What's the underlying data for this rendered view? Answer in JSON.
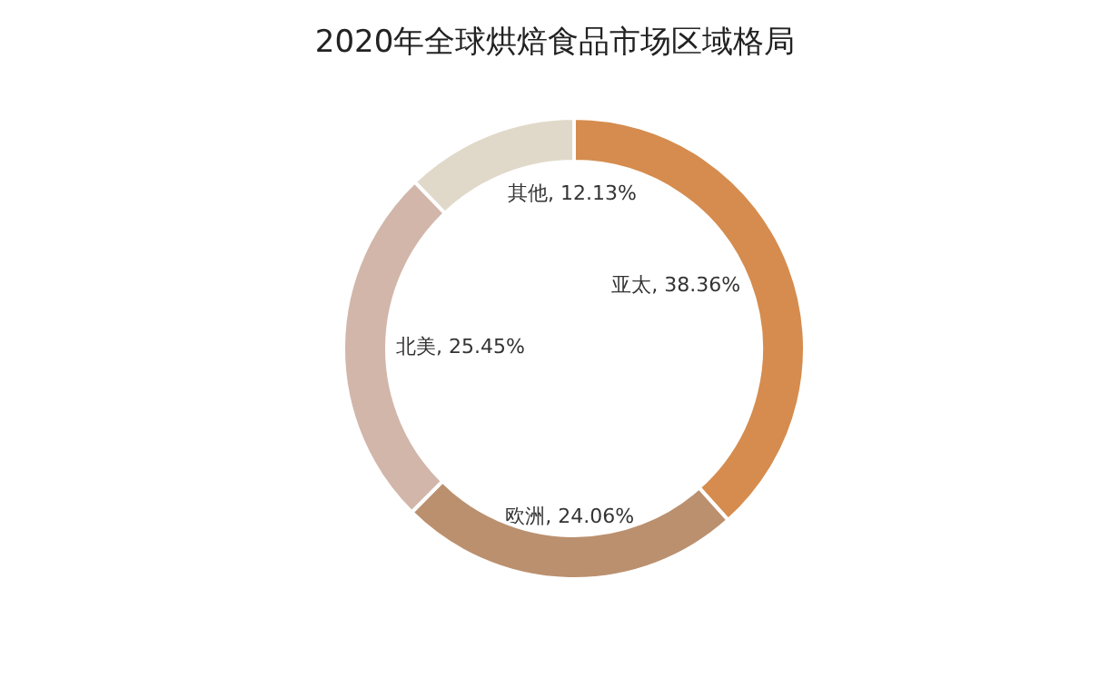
{
  "chart_data": {
    "type": "donut",
    "title": "2020年全球烘焙食品市场区域格局",
    "categories": [
      "亚太",
      "欧洲",
      "北美",
      "其他"
    ],
    "values": [
      38.36,
      24.06,
      25.45,
      12.13
    ],
    "value_labels": [
      "38.36%",
      "24.06%",
      "25.45%",
      "12.13%"
    ],
    "colors": [
      "#d58c4e",
      "#bb906f",
      "#d2b6aa",
      "#e0d9c9"
    ],
    "legend": false
  }
}
